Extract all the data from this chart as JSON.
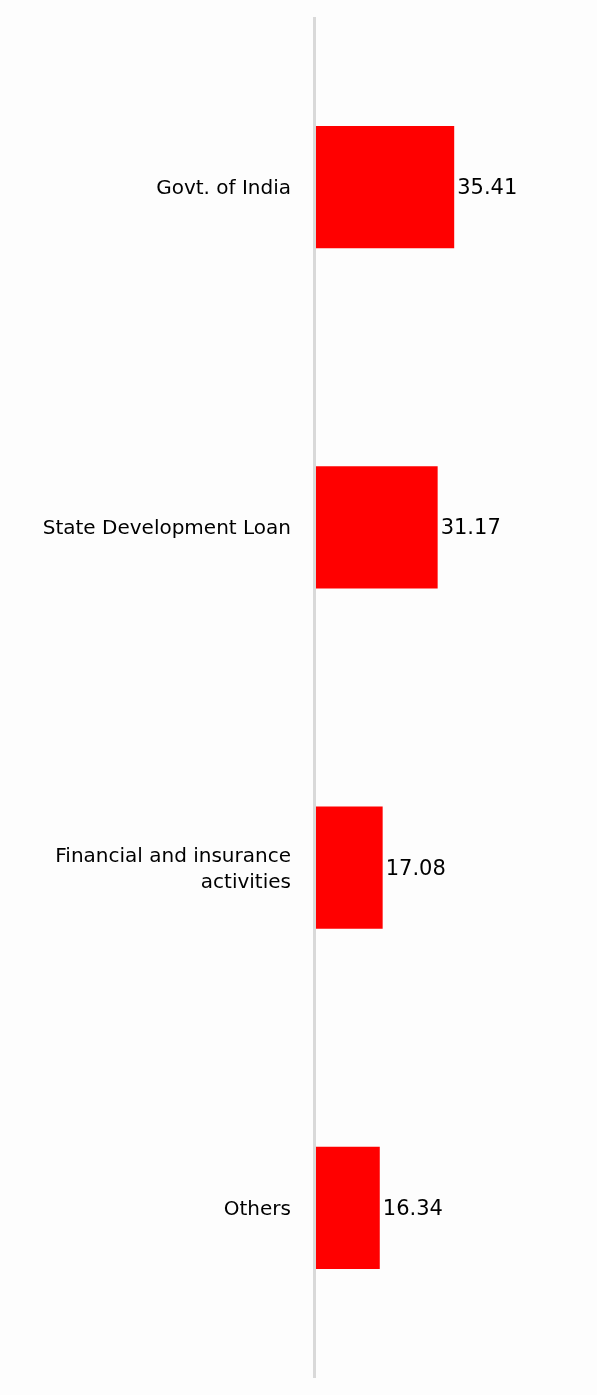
{
  "chart_data": {
    "type": "bar",
    "orientation": "horizontal",
    "categories": [
      "Govt. of India",
      "State Development Loan",
      "Financial and insurance activities",
      "Others"
    ],
    "values": [
      35.41,
      31.17,
      17.08,
      16.34
    ],
    "color": "#ff0000",
    "data_labels": true,
    "xlim": [
      0,
      72
    ],
    "tick_labels": "y",
    "legend": false
  }
}
